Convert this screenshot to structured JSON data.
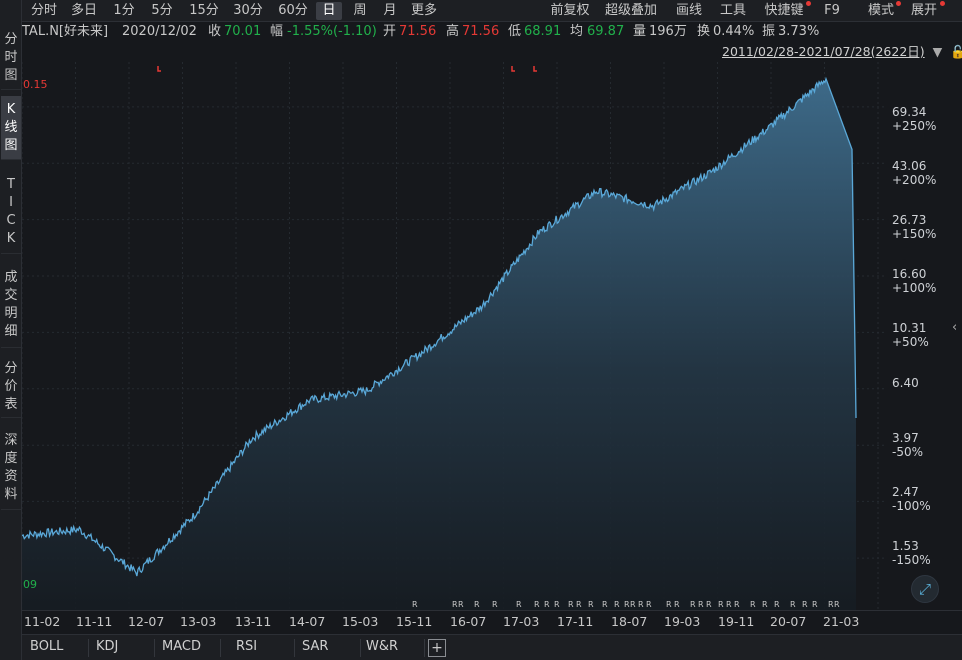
{
  "side_tabs": [
    {
      "label": [
        "分",
        "时",
        "图"
      ],
      "active": false
    },
    {
      "label": [
        "K",
        "线",
        "图"
      ],
      "active": true
    },
    {
      "label": [
        "T",
        "I",
        "C",
        "K"
      ],
      "active": false
    },
    {
      "label": [
        "成",
        "交",
        "明",
        "细"
      ],
      "active": false
    },
    {
      "label": [
        "分",
        "价",
        "表"
      ],
      "active": false
    },
    {
      "label": [
        "深",
        "度",
        "资",
        "料"
      ],
      "active": false
    }
  ],
  "toolbar": {
    "periods": [
      "分时",
      "多日",
      "1分",
      "5分",
      "15分",
      "30分",
      "60分",
      "日",
      "周",
      "月",
      "更多"
    ],
    "active_period": "日",
    "right_items": [
      "前复权",
      "超级叠加",
      "画线",
      "工具",
      "快捷键",
      "F9",
      "模式",
      "展开"
    ]
  },
  "quote": {
    "symbol": "TAL.N[好未来]",
    "date": "2020/12/02",
    "close_label": "收",
    "close": "70.01",
    "change_label": "幅",
    "change": "-1.55%(-1.10)",
    "open_label": "开",
    "open": "71.56",
    "high_label": "高",
    "high": "71.56",
    "low_label": "低",
    "low": "68.91",
    "avg_label": "均",
    "avg": "69.87",
    "volume_label": "量",
    "volume": "196万",
    "turnover_label": "换",
    "turnover": "0.44%",
    "amplitude_label": "振",
    "amplitude": "3.73%"
  },
  "range": {
    "text": "2011/02/28-2021/07/28(2622日)"
  },
  "chart": {
    "high_marker": "0.15",
    "low_marker": "09",
    "line_color": "#5aa8d8",
    "up_color": "#e53935",
    "down_color": "#21b04b"
  },
  "chart_data": {
    "type": "area",
    "scale": "log",
    "x": [
      "11-02",
      "11-11",
      "12-07",
      "13-03",
      "13-11",
      "14-07",
      "15-03",
      "15-11",
      "16-07",
      "17-03",
      "17-11",
      "18-07",
      "19-03",
      "19-11",
      "20-07",
      "21-03"
    ],
    "y": [
      1.85,
      1.95,
      1.35,
      2.2,
      4.2,
      5.8,
      6.3,
      8.8,
      12.8,
      24,
      34,
      30,
      40,
      58,
      88,
      5.0
    ],
    "y_ticks": [
      {
        "price": "69.34",
        "pct": "+250%"
      },
      {
        "price": "43.06",
        "pct": "+200%"
      },
      {
        "price": "26.73",
        "pct": "+150%"
      },
      {
        "price": "16.60",
        "pct": "+100%"
      },
      {
        "price": "10.31",
        "pct": "+50%"
      },
      {
        "price": "6.40",
        "pct": ""
      },
      {
        "price": "3.97",
        "pct": "-50%"
      },
      {
        "price": "2.47",
        "pct": "-100%"
      },
      {
        "price": "1.53",
        "pct": "-150%"
      }
    ]
  },
  "indicators": [
    "BOLL",
    "KDJ",
    "MACD",
    "RSI",
    "SAR",
    "W&R"
  ]
}
